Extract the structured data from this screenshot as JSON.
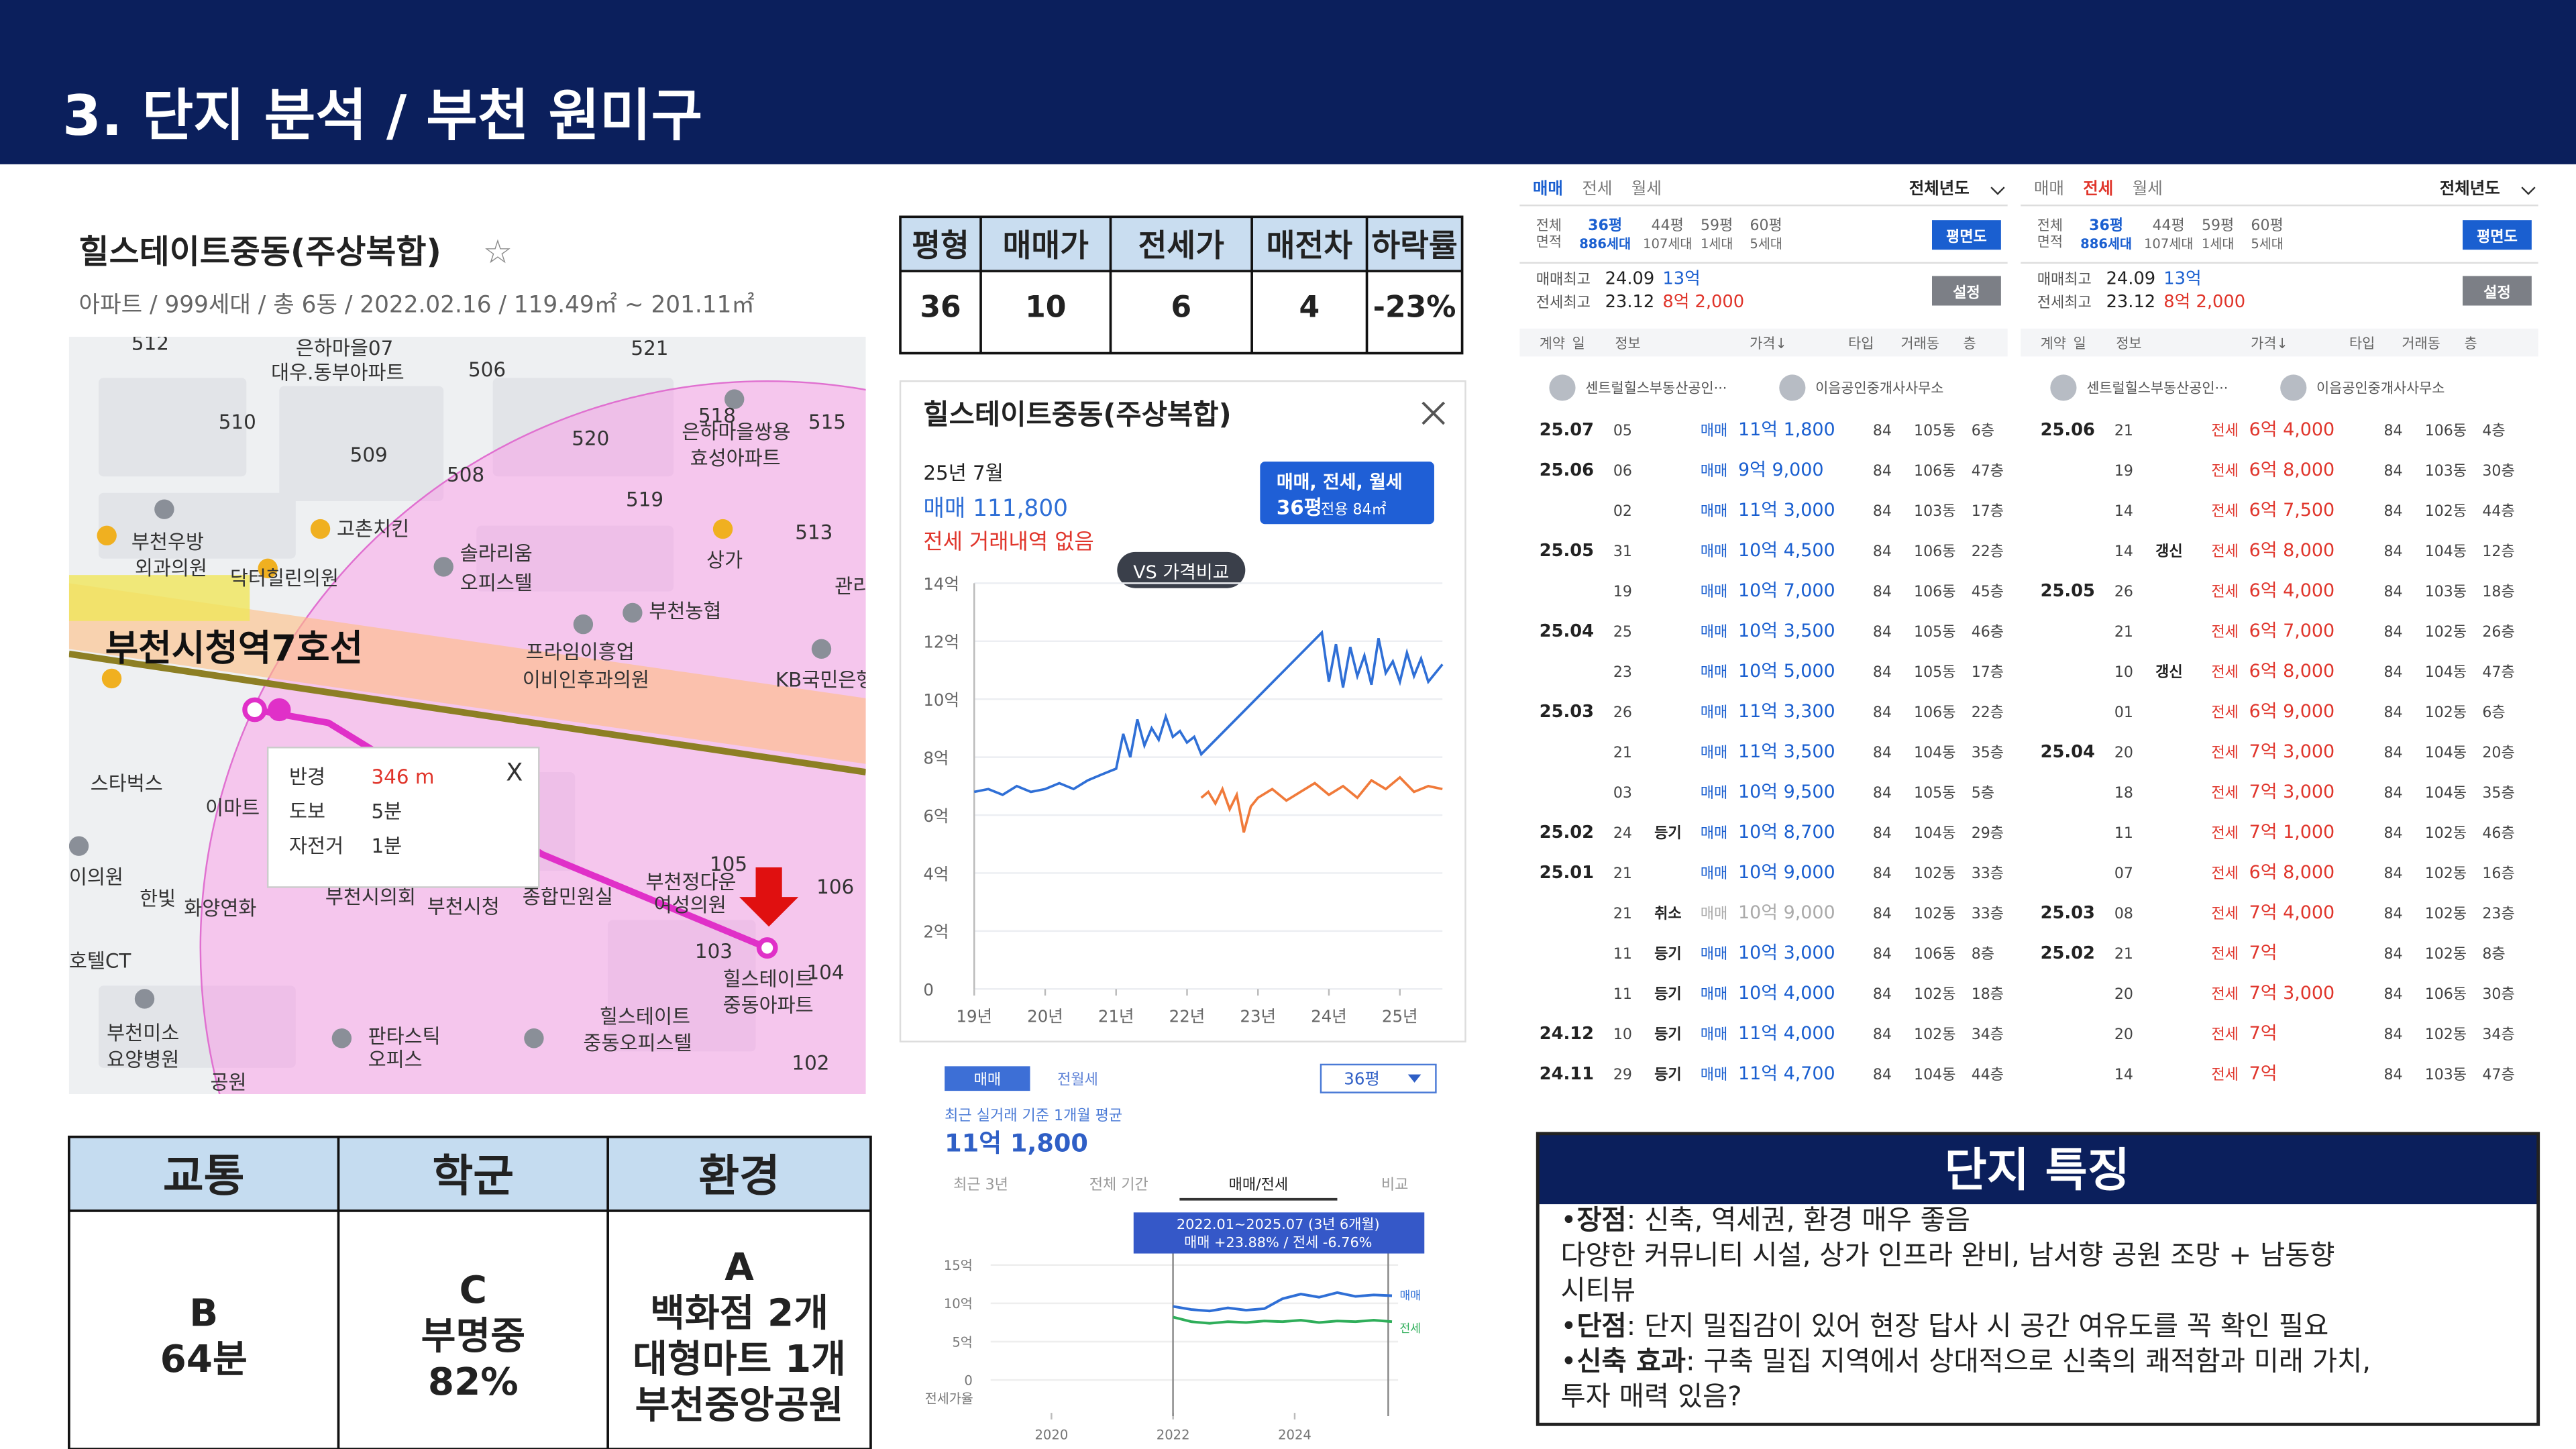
{
  "header": {
    "title": "3. 단지 분석 / 부천 원미구"
  },
  "complex": {
    "name": "힐스테이트중동(주상복합)",
    "star": "☆",
    "info": "아파트 / 999세대 / 총 6동 / 2022.02.16 / 119.49㎡ ~ 201.11㎡"
  },
  "map": {
    "labels": [
      "512",
      "은하마을07",
      "대우.동부아파트",
      "506",
      "521",
      "510",
      "520",
      "518",
      "은하마을쌍용",
      "효성아파트",
      "515",
      "509",
      "508",
      "519",
      "513",
      "부천우방",
      "외과의원",
      "고촌치킨",
      "닥터힐린의원",
      "솔라리움",
      "오피스텔",
      "상가",
      "관리",
      "부천농협",
      "프라임이흥업",
      "이비인후과의원",
      "KB국민은행",
      "스타벅스",
      "이마트",
      "이의원",
      "한빛",
      "화양연화",
      "부천시의회",
      "부천시청",
      "종합민원실",
      "부천정다운",
      "여성의원",
      "105",
      "106",
      "103",
      "힐스테이트",
      "104",
      "중동아파트",
      "102",
      "호텔CT",
      "부천미소",
      "요양병원",
      "판타스틱",
      "오피스",
      "힐스테이트",
      "중동오피스텔",
      "공원"
    ],
    "station": "부천시청역7호선",
    "popup": [
      [
        "반경",
        "346 m"
      ],
      [
        "도보",
        "5분"
      ],
      [
        "자전거",
        "1분"
      ]
    ],
    "close": "X"
  },
  "price_table": {
    "headers": [
      "평형",
      "매매가",
      "전세가",
      "매전차",
      "하락률"
    ],
    "rows": [
      [
        "36",
        "10",
        "6",
        "4",
        "-23%"
      ]
    ]
  },
  "grades": {
    "headers": [
      "교통",
      "학군",
      "환경"
    ],
    "cells": [
      [
        "B",
        "64분"
      ],
      [
        "C",
        "부명중",
        "82%"
      ],
      [
        "A",
        "백화점 2개",
        "대형마트 1개",
        "부천중앙공원"
      ]
    ]
  },
  "price_chart": {
    "type": "line",
    "title": "힐스테이트중동(주상복합)",
    "month": "25년 7월",
    "sale": "매매 111,800",
    "jeonse": "전세 거래내역 없음",
    "filter": "매매, 전세, 월세",
    "size": "36평",
    "area": "전용 84㎡",
    "compare": "VS 가격비교",
    "xlim": [
      2019,
      2025.6
    ],
    "xticks": [
      {
        "value": 2019,
        "label": "19년"
      },
      {
        "value": 2020,
        "label": "20년"
      },
      {
        "value": 2021,
        "label": "21년"
      },
      {
        "value": 2022,
        "label": "22년"
      },
      {
        "value": 2023,
        "label": "23년"
      },
      {
        "value": 2024,
        "label": "24년"
      },
      {
        "value": 2025,
        "label": "25년"
      }
    ],
    "ylim": [
      0,
      14
    ],
    "yticks": [
      0,
      {
        "value": 2,
        "label": "2억"
      },
      {
        "value": 4,
        "label": "4억"
      },
      {
        "value": 6,
        "label": "6억"
      },
      {
        "value": 8,
        "label": "8억"
      },
      {
        "value": 10,
        "label": "10억"
      },
      {
        "value": 12,
        "label": "12억"
      },
      {
        "value": 14,
        "label": "14억"
      }
    ],
    "series": [
      {
        "name": "매매",
        "color": "#2f6fd6",
        "x": [
          2019.0,
          2019.2,
          2019.4,
          2019.6,
          2019.8,
          2020.0,
          2020.2,
          2020.4,
          2020.6,
          2020.8,
          2021.0,
          2021.1,
          2021.2,
          2021.3,
          2021.4,
          2021.5,
          2021.6,
          2021.7,
          2021.8,
          2021.9,
          2022.0,
          2022.1,
          2022.2,
          2023.9,
          2024.0,
          2024.1,
          2024.2,
          2024.3,
          2024.4,
          2024.5,
          2024.6,
          2024.7,
          2024.8,
          2024.9,
          2025.0,
          2025.1,
          2025.2,
          2025.3,
          2025.4,
          2025.6
        ],
        "values": [
          6.8,
          6.9,
          6.7,
          7.0,
          6.8,
          6.9,
          7.1,
          6.9,
          7.2,
          7.4,
          7.6,
          8.8,
          8.0,
          9.3,
          8.4,
          9.0,
          8.6,
          9.4,
          8.7,
          8.9,
          8.5,
          8.7,
          8.1,
          12.3,
          10.6,
          11.9,
          10.4,
          11.8,
          10.8,
          11.5,
          10.5,
          12.1,
          10.9,
          11.3,
          10.6,
          11.6,
          10.8,
          11.4,
          10.6,
          11.2
        ]
      },
      {
        "name": "전세",
        "color": "#f07a3a",
        "x": [
          2022.2,
          2022.3,
          2022.4,
          2022.5,
          2022.6,
          2022.7,
          2022.8,
          2022.9,
          2023.0,
          2023.2,
          2023.4,
          2023.6,
          2023.8,
          2024.0,
          2024.2,
          2024.4,
          2024.6,
          2024.8,
          2025.0,
          2025.2,
          2025.4,
          2025.6
        ],
        "values": [
          6.6,
          6.8,
          6.4,
          6.9,
          6.2,
          6.7,
          5.4,
          6.3,
          6.6,
          6.9,
          6.5,
          6.8,
          7.1,
          6.7,
          7.0,
          6.6,
          7.2,
          6.9,
          7.3,
          6.8,
          7.0,
          6.9
        ]
      }
    ]
  },
  "trend_panel": {
    "tabs": [
      "매매",
      "전월세"
    ],
    "size": "36평",
    "avg_label": "최근 실거래 기준 1개월 평균",
    "avg_price": "11억 1,800",
    "ranges": [
      "최근 3년",
      "전체 기간",
      "매매/전세",
      "비교"
    ],
    "tooltip": [
      "2022.01~2025.07 (3년 6개월)",
      "매매 +23.88% / 전세 -6.76%"
    ],
    "ratio_label": "전세가율",
    "type": "line",
    "xlim": [
      2019,
      2025.7
    ],
    "xticks": [
      2020,
      2022,
      2024
    ],
    "ylim": [
      0,
      15
    ],
    "yticks": [
      0,
      {
        "value": 5,
        "label": "5억"
      },
      {
        "value": 10,
        "label": "10억"
      },
      {
        "value": 15,
        "label": "15억"
      }
    ],
    "series": [
      {
        "name": "매매",
        "color": "#2f6fd6",
        "x": [
          2022.0,
          2022.3,
          2022.6,
          2022.9,
          2023.2,
          2023.5,
          2023.8,
          2024.1,
          2024.4,
          2024.7,
          2025.0,
          2025.3,
          2025.6
        ],
        "values": [
          9.6,
          9.2,
          9.0,
          9.4,
          9.1,
          9.3,
          10.6,
          11.2,
          10.8,
          11.4,
          10.9,
          11.1,
          11.0
        ]
      },
      {
        "name": "전세",
        "color": "#2fae5a",
        "x": [
          2022.0,
          2022.3,
          2022.6,
          2022.9,
          2023.2,
          2023.5,
          2023.8,
          2024.1,
          2024.4,
          2024.7,
          2025.0,
          2025.3,
          2025.6
        ],
        "values": [
          8.2,
          7.6,
          7.4,
          7.6,
          7.5,
          7.7,
          7.6,
          7.8,
          7.5,
          7.7,
          7.6,
          7.8,
          7.6
        ]
      }
    ]
  },
  "deal_panels": [
    {
      "tabs": [
        "매매",
        "전세",
        "월세"
      ],
      "active": 0,
      "period": "전체년도",
      "area_label": [
        "전체",
        "면적"
      ],
      "sizes": [
        [
          "36평",
          "886세대"
        ],
        [
          "44평",
          "107세대"
        ],
        [
          "59평",
          "1세대"
        ],
        [
          "60평",
          "5세대"
        ]
      ],
      "plan": "평면도",
      "max_sale": [
        "매매최고",
        "24.09",
        "13억"
      ],
      "max_jeonse": [
        "전세최고",
        "23.12",
        "8억 2,000"
      ],
      "setting": "설정",
      "columns": [
        "계약",
        "일",
        "정보",
        "가격↓",
        "타입",
        "거래동",
        "층"
      ],
      "agents": [
        "센트럴힐스부동산공인···",
        "이음공인중개사사무소"
      ],
      "rows": [
        [
          "25.07",
          "05",
          null,
          "매매",
          "11억 1,800",
          "84",
          "105동",
          "6층"
        ],
        [
          "25.06",
          "06",
          null,
          "매매",
          "9억 9,000",
          "84",
          "106동",
          "47층"
        ],
        [
          null,
          "02",
          null,
          "매매",
          "11억 3,000",
          "84",
          "103동",
          "17층"
        ],
        [
          "25.05",
          "31",
          null,
          "매매",
          "10억 4,500",
          "84",
          "106동",
          "22층"
        ],
        [
          null,
          "19",
          null,
          "매매",
          "10억 7,000",
          "84",
          "106동",
          "45층"
        ],
        [
          "25.04",
          "25",
          null,
          "매매",
          "10억 3,500",
          "84",
          "105동",
          "46층"
        ],
        [
          null,
          "23",
          null,
          "매매",
          "10억 5,000",
          "84",
          "105동",
          "17층"
        ],
        [
          "25.03",
          "26",
          null,
          "매매",
          "11억 3,300",
          "84",
          "106동",
          "22층"
        ],
        [
          null,
          "21",
          null,
          "매매",
          "11억 3,500",
          "84",
          "104동",
          "35층"
        ],
        [
          null,
          "03",
          null,
          "매매",
          "10억 9,500",
          "84",
          "105동",
          "5층"
        ],
        [
          "25.02",
          "24",
          "등기",
          "매매",
          "10억 8,700",
          "84",
          "104동",
          "29층"
        ],
        [
          "25.01",
          "21",
          null,
          "매매",
          "10억 9,000",
          "84",
          "102동",
          "33층"
        ],
        [
          null,
          "21",
          "취소",
          "매매",
          "10억 9,000",
          "84",
          "102동",
          "33층"
        ],
        [
          null,
          "11",
          "등기",
          "매매",
          "10억 3,000",
          "84",
          "106동",
          "8층"
        ],
        [
          null,
          "11",
          "등기",
          "매매",
          "10억 4,000",
          "84",
          "102동",
          "18층"
        ],
        [
          "24.12",
          "10",
          "등기",
          "매매",
          "11억 4,000",
          "84",
          "102동",
          "34층"
        ],
        [
          "24.11",
          "29",
          "등기",
          "매매",
          "11억 4,700",
          "84",
          "104동",
          "44층"
        ]
      ]
    },
    {
      "tabs": [
        "매매",
        "전세",
        "월세"
      ],
      "active": 1,
      "period": "전체년도",
      "area_label": [
        "전체",
        "면적"
      ],
      "sizes": [
        [
          "36평",
          "886세대"
        ],
        [
          "44평",
          "107세대"
        ],
        [
          "59평",
          "1세대"
        ],
        [
          "60평",
          "5세대"
        ]
      ],
      "plan": "평면도",
      "max_sale": [
        "매매최고",
        "24.09",
        "13억"
      ],
      "max_jeonse": [
        "전세최고",
        "23.12",
        "8억 2,000"
      ],
      "setting": "설정",
      "columns": [
        "계약",
        "일",
        "정보",
        "가격↓",
        "타입",
        "거래동",
        "층"
      ],
      "agents": [
        "센트럴힐스부동산공인···",
        "이음공인중개사사무소"
      ],
      "rows": [
        [
          "25.06",
          "21",
          null,
          "전세",
          "6억 4,000",
          "84",
          "106동",
          "4층"
        ],
        [
          null,
          "19",
          null,
          "전세",
          "6억 8,000",
          "84",
          "103동",
          "30층"
        ],
        [
          null,
          "14",
          null,
          "전세",
          "6억 7,500",
          "84",
          "102동",
          "44층"
        ],
        [
          null,
          "14",
          "갱신",
          "전세",
          "6억 8,000",
          "84",
          "104동",
          "12층"
        ],
        [
          "25.05",
          "26",
          null,
          "전세",
          "6억 4,000",
          "84",
          "103동",
          "18층"
        ],
        [
          null,
          "21",
          null,
          "전세",
          "6억 7,000",
          "84",
          "102동",
          "26층"
        ],
        [
          null,
          "10",
          "갱신",
          "전세",
          "6억 8,000",
          "84",
          "104동",
          "47층"
        ],
        [
          null,
          "01",
          null,
          "전세",
          "6억 9,000",
          "84",
          "102동",
          "6층"
        ],
        [
          "25.04",
          "20",
          null,
          "전세",
          "7억 3,000",
          "84",
          "104동",
          "20층"
        ],
        [
          null,
          "18",
          null,
          "전세",
          "7억 3,000",
          "84",
          "104동",
          "35층"
        ],
        [
          null,
          "11",
          null,
          "전세",
          "7억 1,000",
          "84",
          "102동",
          "46층"
        ],
        [
          null,
          "07",
          null,
          "전세",
          "6억 8,000",
          "84",
          "102동",
          "16층"
        ],
        [
          "25.03",
          "08",
          null,
          "전세",
          "7억 4,000",
          "84",
          "102동",
          "23층"
        ],
        [
          "25.02",
          "21",
          null,
          "전세",
          "7억",
          "84",
          "102동",
          "8층"
        ],
        [
          null,
          "20",
          null,
          "전세",
          "7억 3,000",
          "84",
          "106동",
          "30층"
        ],
        [
          null,
          "20",
          null,
          "전세",
          "7억",
          "84",
          "102동",
          "34층"
        ],
        [
          null,
          "14",
          null,
          "전세",
          "7억",
          "84",
          "103동",
          "47층"
        ]
      ]
    }
  ],
  "features": {
    "title": "단지 특징",
    "items": [
      {
        "bullet": "•",
        "label": "장점",
        "lines": [
          ": 신축, 역세권, 환경 매우 좋음",
          "다양한 커뮤니티 시설, 상가 인프라 완비, 남서향 공원 조망 + 남동향",
          "시티뷰"
        ]
      },
      {
        "bullet": "•",
        "label": "단점",
        "lines": [
          ": 단지 밀집감이 있어 현장 답사 시 공간 여유도를 꼭 확인 필요"
        ]
      },
      {
        "bullet": "•",
        "label": "신축 효과",
        "lines": [
          ": 구축 밀집 지역에서 상대적으로 신축의 쾌적함과 미래 가치,",
          "투자 매력 있음?"
        ]
      }
    ]
  }
}
